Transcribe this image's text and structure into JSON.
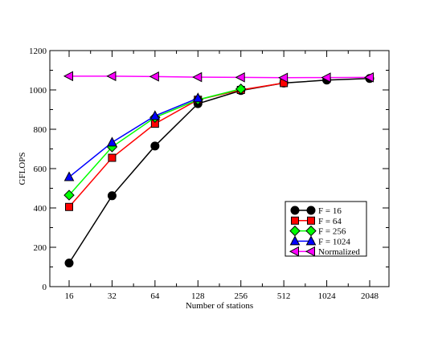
{
  "chart_data": {
    "type": "line",
    "title": "",
    "xlabel": "Number of stations",
    "ylabel": "GFLOPS",
    "x_scale": "log2",
    "categories": [
      "16",
      "32",
      "64",
      "128",
      "256",
      "512",
      "1024",
      "2048"
    ],
    "x": [
      16,
      32,
      64,
      128,
      256,
      512,
      1024,
      2048
    ],
    "ylim": [
      0,
      1200
    ],
    "yticks": [
      0,
      200,
      400,
      600,
      800,
      1000,
      1200
    ],
    "grid": false,
    "legend_position": "bottom-right",
    "series": [
      {
        "name": "F = 16",
        "color": "#000000",
        "marker": "circle",
        "x": [
          16,
          32,
          64,
          128,
          256,
          512,
          1024,
          2048
        ],
        "values": [
          120,
          462,
          715,
          930,
          997,
          1035,
          1050,
          1058
        ]
      },
      {
        "name": "F = 64",
        "color": "#ff0000",
        "marker": "square",
        "x": [
          16,
          32,
          64,
          128,
          256,
          512
        ],
        "values": [
          405,
          655,
          828,
          950,
          1000,
          1035
        ]
      },
      {
        "name": "F = 256",
        "color": "#00ff00",
        "marker": "diamond",
        "x": [
          16,
          32,
          64,
          128,
          256
        ],
        "values": [
          465,
          710,
          860,
          950,
          1005
        ]
      },
      {
        "name": "F = 1024",
        "color": "#0000ff",
        "marker": "triangle-up",
        "x": [
          16,
          32,
          64,
          128
        ],
        "values": [
          557,
          733,
          868,
          958
        ]
      },
      {
        "name": "Normalized",
        "color": "#ff00ff",
        "marker": "triangle-left",
        "x": [
          16,
          32,
          64,
          128,
          256,
          512,
          1024,
          2048
        ],
        "values": [
          1070,
          1070,
          1068,
          1065,
          1064,
          1062,
          1063,
          1064
        ]
      }
    ]
  }
}
